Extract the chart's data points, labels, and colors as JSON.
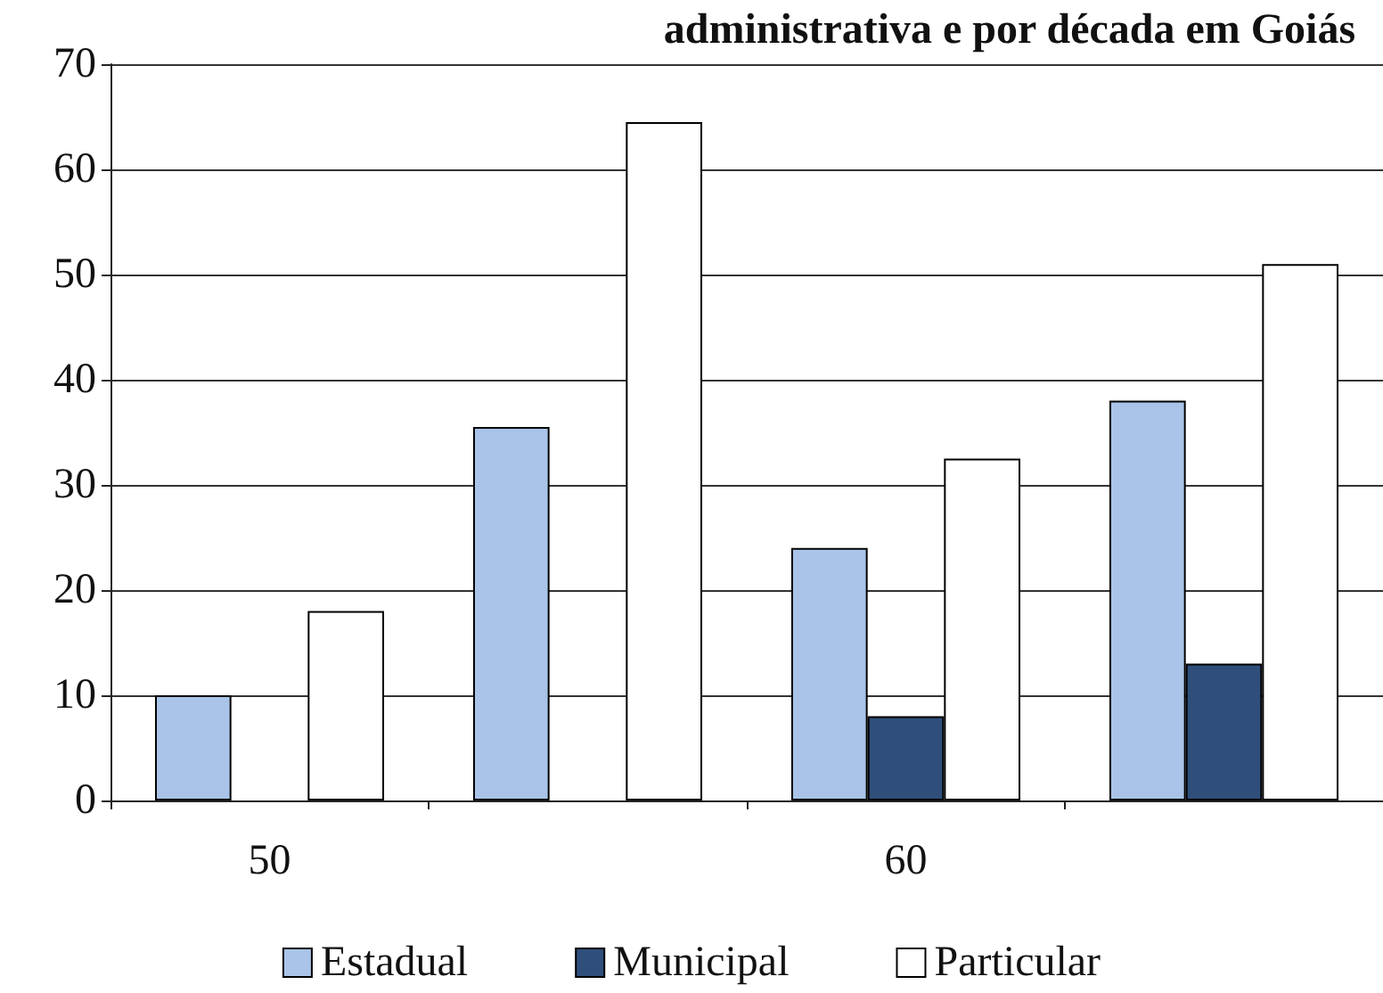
{
  "chart_data": {
    "type": "bar",
    "title": "administrativa e por década em Goiás",
    "categories": [
      "50",
      null,
      "60",
      null
    ],
    "series": [
      {
        "name": "Estadual",
        "color": "#a9c4e8",
        "values": [
          10,
          35.5,
          24,
          38
        ]
      },
      {
        "name": "Municipal",
        "color": "#2f4f7a",
        "values": [
          null,
          null,
          8,
          13
        ]
      },
      {
        "name": "Particular",
        "color": "#ffffff",
        "values": [
          18,
          64.5,
          32.5,
          51
        ]
      }
    ],
    "ylim": [
      0,
      70
    ],
    "yticks": [
      0,
      10,
      20,
      30,
      40,
      50,
      60,
      70
    ],
    "grid": "y",
    "legend": "bottom"
  }
}
